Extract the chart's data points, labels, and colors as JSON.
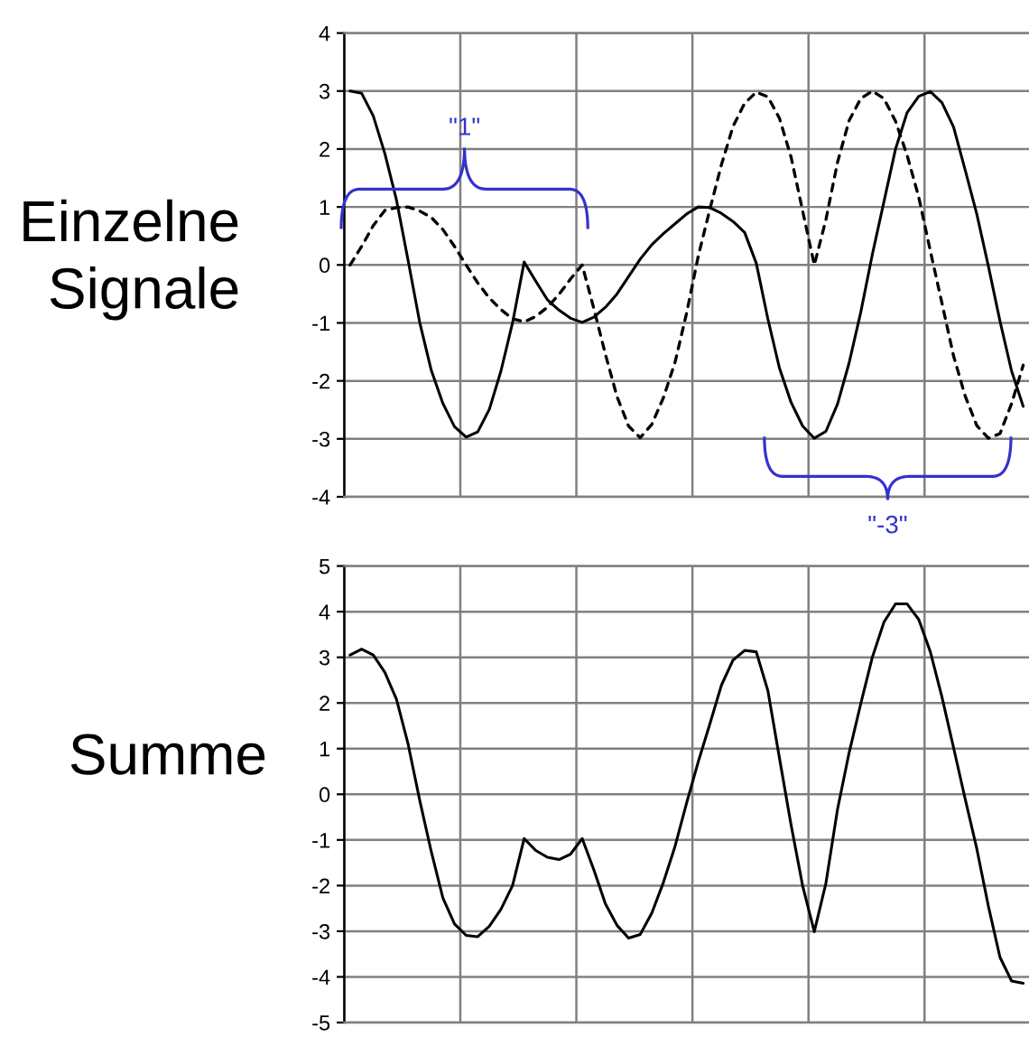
{
  "chart_data": [
    {
      "type": "line",
      "ylabel": "Einzelne\nSignale",
      "categories": [
        null,
        null,
        null,
        null,
        null,
        null,
        null,
        null,
        null,
        null,
        null,
        null,
        null,
        null,
        null,
        null,
        null,
        null,
        null,
        null,
        null,
        null,
        null,
        null,
        null,
        null,
        null,
        null,
        null,
        null,
        null,
        null,
        null,
        null,
        null,
        null,
        null,
        null,
        null,
        null,
        null,
        null,
        null,
        null,
        null,
        null,
        null,
        null,
        null,
        null,
        null,
        null,
        null,
        null,
        null,
        null,
        null,
        null,
        null
      ],
      "ylim": [
        -4,
        4
      ],
      "yticks": [
        -4,
        -3,
        -2,
        -1,
        0,
        1,
        2,
        3,
        4
      ],
      "grid": true,
      "tick_labels": "y",
      "annotations": [
        "\"1\"",
        "\"-3\""
      ],
      "series": [
        {
          "color": "#000000",
          "line_style": "solid",
          "values": [
            3.0,
            2.96,
            2.57,
            1.92,
            1.12,
            0.08,
            -0.99,
            -1.82,
            -2.39,
            -2.79,
            -2.97,
            -2.88,
            -2.49,
            -1.83,
            -1.0,
            0.05,
            -0.28,
            -0.6,
            -0.78,
            -0.92,
            -0.99,
            -0.9,
            -0.73,
            -0.5,
            -0.2,
            0.1,
            0.35,
            0.54,
            0.71,
            0.88,
            1.0,
            0.99,
            0.89,
            0.75,
            0.56,
            0.03,
            -0.93,
            -1.78,
            -2.37,
            -2.78,
            -2.99,
            -2.87,
            -2.4,
            -1.69,
            -0.82,
            0.18,
            1.09,
            2.0,
            2.63,
            2.91,
            2.99,
            2.8,
            2.38,
            1.64,
            0.88,
            -0.02,
            -0.97,
            -1.83,
            -2.44
          ]
        },
        {
          "color": "#000000",
          "line_style": "dashed",
          "values": [
            0.0,
            0.32,
            0.68,
            0.94,
            0.99,
            1.0,
            0.93,
            0.82,
            0.61,
            0.32,
            0.0,
            -0.31,
            -0.57,
            -0.77,
            -0.93,
            -0.98,
            -0.89,
            -0.73,
            -0.51,
            -0.24,
            0.0,
            -0.75,
            -1.54,
            -2.27,
            -2.78,
            -2.98,
            -2.75,
            -2.29,
            -1.68,
            -0.83,
            0.15,
            0.96,
            1.73,
            2.39,
            2.79,
            2.98,
            2.9,
            2.53,
            1.86,
            0.93,
            0.0,
            0.78,
            1.77,
            2.49,
            2.87,
            3.0,
            2.87,
            2.48,
            1.89,
            1.17,
            0.24,
            -0.66,
            -1.57,
            -2.26,
            -2.77,
            -2.99,
            -2.91,
            -2.39,
            -1.73
          ]
        }
      ]
    },
    {
      "type": "line",
      "ylabel": "Summe",
      "categories": [
        null,
        null,
        null,
        null,
        null,
        null,
        null,
        null,
        null,
        null,
        null,
        null,
        null,
        null,
        null,
        null,
        null,
        null,
        null,
        null,
        null,
        null,
        null,
        null,
        null,
        null,
        null,
        null,
        null,
        null,
        null,
        null,
        null,
        null,
        null,
        null,
        null,
        null,
        null,
        null,
        null,
        null,
        null,
        null,
        null,
        null,
        null,
        null,
        null,
        null,
        null,
        null,
        null,
        null,
        null,
        null,
        null,
        null,
        null
      ],
      "ylim": [
        -5,
        5
      ],
      "yticks": [
        -5,
        -4,
        -3,
        -2,
        -1,
        0,
        1,
        2,
        3,
        4,
        5
      ],
      "grid": true,
      "tick_labels": "y",
      "series": [
        {
          "color": "#000000",
          "line_style": "solid",
          "values": [
            3.05,
            3.18,
            3.05,
            2.67,
            2.08,
            1.1,
            -0.13,
            -1.26,
            -2.27,
            -2.84,
            -3.09,
            -3.12,
            -2.89,
            -2.52,
            -2.0,
            -0.97,
            -1.23,
            -1.38,
            -1.43,
            -1.31,
            -0.97,
            -1.65,
            -2.4,
            -2.87,
            -3.15,
            -3.07,
            -2.6,
            -1.93,
            -1.14,
            -0.19,
            0.71,
            1.54,
            2.39,
            2.94,
            3.15,
            3.12,
            2.27,
            0.79,
            -0.67,
            -2.01,
            -3.01,
            -1.95,
            -0.33,
            0.91,
            1.98,
            3.0,
            3.77,
            4.17,
            4.17,
            3.83,
            3.12,
            2.13,
            1.02,
            -0.1,
            -1.19,
            -2.45,
            -3.57,
            -4.09,
            -4.14
          ]
        }
      ]
    }
  ]
}
